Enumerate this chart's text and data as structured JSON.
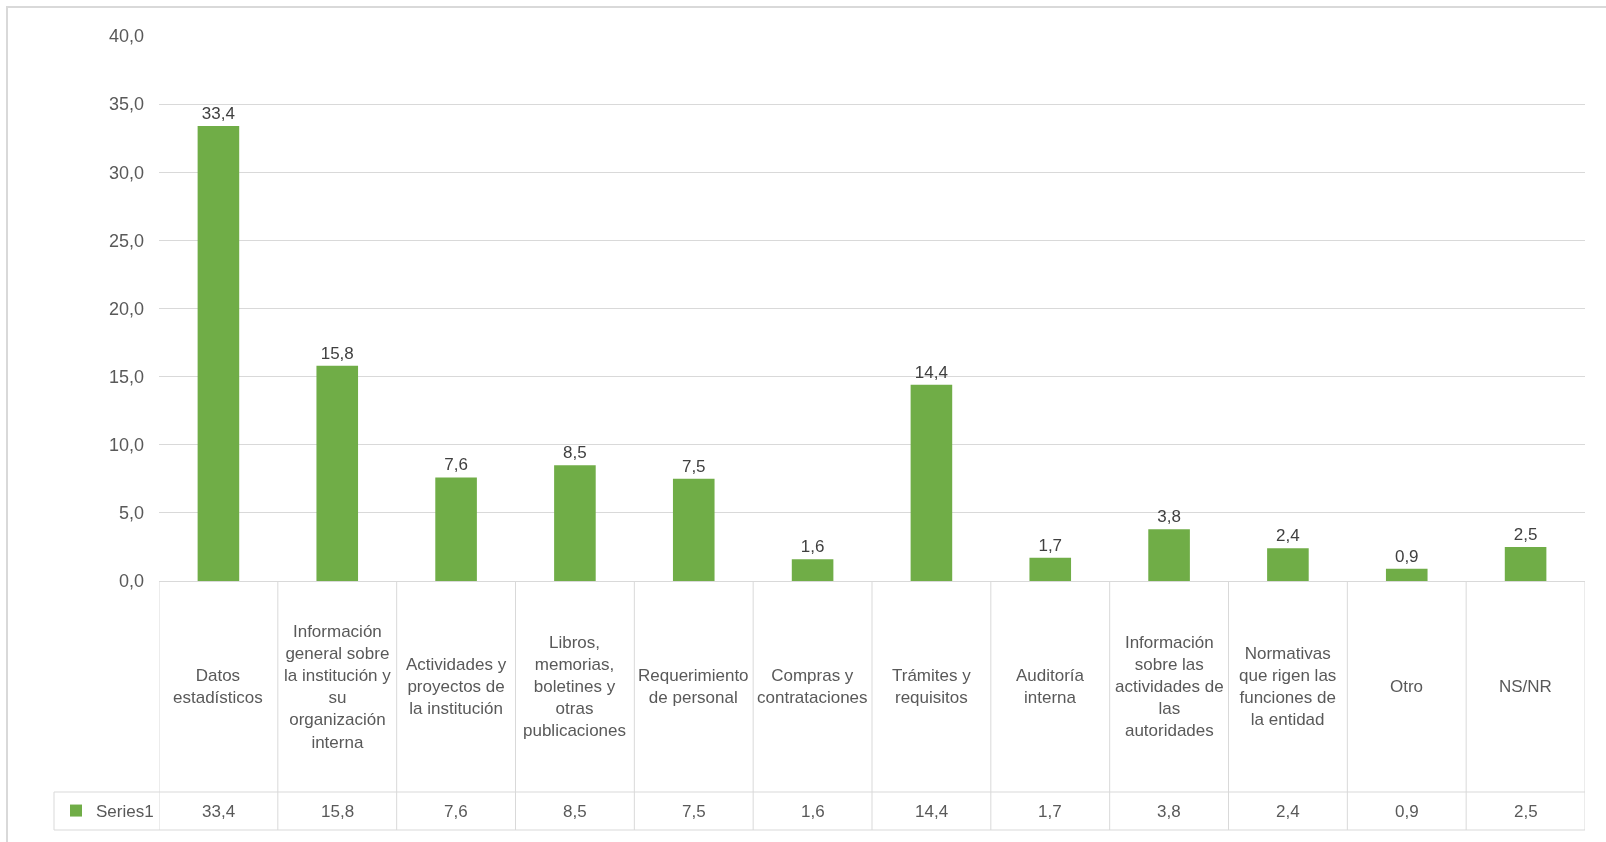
{
  "chart_data": {
    "type": "bar",
    "categories": [
      "Datos estadísticos",
      "Información general sobre la institución y su organización interna",
      "Actividades y proyectos de la institución",
      "Libros, memorias, boletines y otras publicaciones",
      "Requerimiento de personal",
      "Compras y contrataciones",
      "Trámites y requisitos",
      "Auditoría interna",
      "Información sobre las actividades de las autoridades",
      "Normativas que rigen las funciones de la entidad",
      "Otro",
      "NS/NR"
    ],
    "series": [
      {
        "name": "Series1",
        "color": "#70ad47",
        "values": [
          33.4,
          15.8,
          7.6,
          8.5,
          7.5,
          1.6,
          14.4,
          1.7,
          3.8,
          2.4,
          0.9,
          2.5
        ],
        "value_labels": [
          "33,4",
          "15,8",
          "7,6",
          "8,5",
          "7,5",
          "1,6",
          "14,4",
          "1,7",
          "3,8",
          "2,4",
          "0,9",
          "2,5"
        ]
      }
    ],
    "ylim": [
      0,
      40
    ],
    "yticks": [
      {
        "value": 0,
        "label": "0,0"
      },
      {
        "value": 5,
        "label": "5,0"
      },
      {
        "value": 10,
        "label": "10,0"
      },
      {
        "value": 15,
        "label": "15,0"
      },
      {
        "value": 20,
        "label": "20,0"
      },
      {
        "value": 25,
        "label": "25,0"
      },
      {
        "value": 30,
        "label": "30,0"
      },
      {
        "value": 35,
        "label": "35,0"
      },
      {
        "value": 40,
        "label": "40,0"
      }
    ],
    "grid": "y",
    "legend": "bottom left"
  }
}
